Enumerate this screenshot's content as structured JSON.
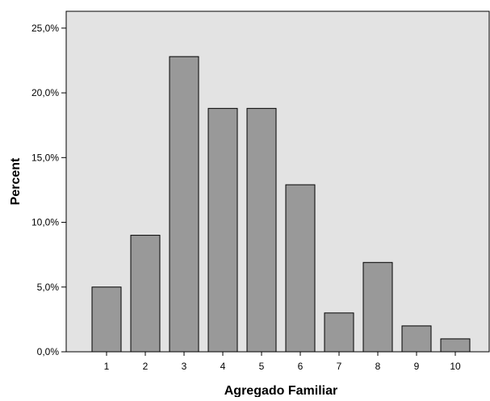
{
  "chart_data": {
    "type": "bar",
    "xlabel": "Agregado Familiar",
    "ylabel": "Percent",
    "categories": [
      "1",
      "2",
      "3",
      "4",
      "5",
      "6",
      "7",
      "8",
      "9",
      "10"
    ],
    "values": [
      5.0,
      9.0,
      22.8,
      18.8,
      18.8,
      12.9,
      3.0,
      6.9,
      2.0,
      1.0
    ],
    "ylim": [
      0,
      26.3
    ],
    "yticks": [
      0,
      5,
      10,
      15,
      20,
      25
    ],
    "ytick_labels": [
      "0,0%",
      "5,0%",
      "10,0%",
      "15,0%",
      "20,0%",
      "25,0%"
    ],
    "grid": false,
    "colors": {
      "plot_background": "#e3e3e3",
      "bar_fill": "#999999",
      "bar_stroke": "#000000",
      "axis": "#000000"
    }
  }
}
